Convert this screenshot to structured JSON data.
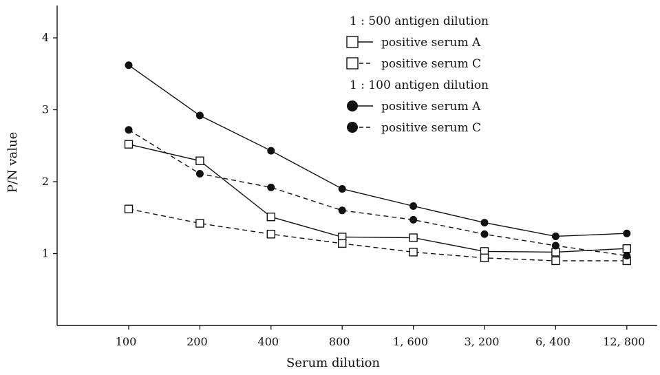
{
  "chart_data": {
    "type": "line",
    "title": "",
    "xlabel": "Serum dilution",
    "ylabel": "P/N value",
    "categories": [
      "100",
      "200",
      "400",
      "800",
      "1, 600",
      "3, 200",
      "6, 400",
      "12, 800"
    ],
    "ylim": [
      0,
      4.45
    ],
    "yticks": [
      "1",
      "2",
      "3",
      "4"
    ],
    "grid": false,
    "legend_position": "top-right",
    "legend_groups": [
      {
        "title": "1 : 500 antigen dilution",
        "items": [
          "positive serum A",
          "positive serum C"
        ]
      },
      {
        "title": "1 : 100 antigen dilution",
        "items": [
          "positive serum A",
          "positive serum C"
        ]
      }
    ],
    "series": [
      {
        "name": "positive serum A",
        "group": "1 : 500 antigen dilution",
        "marker": "open-square",
        "line": "solid",
        "values": [
          2.52,
          2.29,
          1.51,
          1.23,
          1.22,
          1.03,
          1.02,
          1.07
        ]
      },
      {
        "name": "positive serum C",
        "group": "1 : 500 antigen dilution",
        "marker": "open-square",
        "line": "dashed",
        "values": [
          1.62,
          1.42,
          1.27,
          1.14,
          1.02,
          0.94,
          0.9,
          0.9
        ]
      },
      {
        "name": "positive serum A",
        "group": "1 : 100 antigen dilution",
        "marker": "filled-circle",
        "line": "solid",
        "values": [
          3.62,
          2.92,
          2.43,
          1.9,
          1.66,
          1.43,
          1.24,
          1.28
        ]
      },
      {
        "name": "positive serum C",
        "group": "1 : 100 antigen dilution",
        "marker": "filled-circle",
        "line": "dashed",
        "values": [
          2.72,
          2.11,
          1.92,
          1.6,
          1.47,
          1.27,
          1.11,
          0.97
        ]
      }
    ]
  }
}
